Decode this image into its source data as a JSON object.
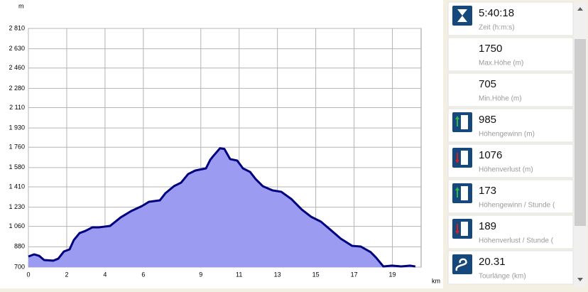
{
  "chart_data": {
    "type": "area",
    "y_unit": "m",
    "x_unit": "km",
    "x": [
      0,
      0.3,
      0.56,
      0.82,
      1.3,
      1.56,
      1.85,
      2.15,
      2.37,
      2.67,
      2.97,
      3.34,
      3.7,
      4.26,
      4.82,
      5.37,
      5.93,
      6.3,
      6.86,
      7.15,
      7.6,
      7.97,
      8.34,
      8.71,
      9.27,
      9.49,
      9.64,
      10.0,
      10.23,
      10.53,
      10.9,
      11.2,
      11.57,
      11.86,
      12.23,
      12.75,
      13.2,
      13.72,
      14.27,
      14.75,
      15.27,
      15.79,
      16.31,
      16.9,
      17.35,
      17.87,
      18.16,
      18.53,
      18.98,
      19.46,
      19.94,
      20.2
    ],
    "series": [
      {
        "color": "#00007f",
        "fill": "#9b9bf2",
        "values": [
          794,
          813,
          800,
          763,
          757,
          775,
          838,
          857,
          939,
          1001,
          1020,
          1052,
          1052,
          1064,
          1140,
          1196,
          1240,
          1278,
          1290,
          1353,
          1416,
          1447,
          1523,
          1554,
          1573,
          1648,
          1680,
          1750,
          1745,
          1655,
          1642,
          1573,
          1542,
          1479,
          1416,
          1378,
          1366,
          1303,
          1209,
          1146,
          1102,
          1027,
          951,
          888,
          882,
          832,
          782,
          706,
          713,
          706,
          713,
          706
        ]
      }
    ],
    "xlim": [
      0,
      20.5
    ],
    "xticks": [
      0,
      2,
      4,
      6,
      9,
      11,
      13,
      15,
      17,
      19
    ],
    "ylim": [
      700,
      2810
    ],
    "yticks": [
      700,
      880,
      {
        "value": 1060,
        "label": "1 060"
      },
      {
        "value": 1230,
        "label": "1 230"
      },
      {
        "value": 1410,
        "label": "1 410"
      },
      {
        "value": 1580,
        "label": "1 580"
      },
      {
        "value": 1760,
        "label": "1 760"
      },
      {
        "value": 1930,
        "label": "1 930"
      },
      {
        "value": 2110,
        "label": "2 110"
      },
      {
        "value": 2280,
        "label": "2 280"
      },
      {
        "value": 2460,
        "label": "2 460"
      },
      {
        "value": 2630,
        "label": "2 630"
      },
      {
        "value": 2810,
        "label": "2 810"
      }
    ],
    "grid": true
  },
  "panel": {
    "items": [
      {
        "value": "5:40:18",
        "label": "Zeit (h:m:s)"
      },
      {
        "value": "1750",
        "label": "Max.Höhe (m)"
      },
      {
        "value": "705",
        "label": "Min.Höhe (m)"
      },
      {
        "value": "985",
        "label": "Höhengewinn (m)"
      },
      {
        "value": "1076",
        "label": "Höhenverlust (m)"
      },
      {
        "value": "173",
        "label": "Höhengewinn  /  Stunde ("
      },
      {
        "value": "189",
        "label": "Höhenverlust  /  Stunde ("
      },
      {
        "value": "20.31",
        "label": "Tourlänge (km)"
      }
    ]
  }
}
